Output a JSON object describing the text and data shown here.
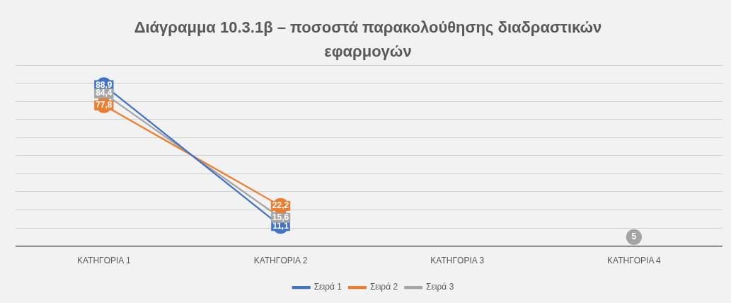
{
  "chart_data": {
    "type": "line",
    "title": "Διάγραμμα 10.3.1β – ποσοστά παρακολούθησης διαδραστικών εφαρμογών",
    "categories": [
      "ΚΑΤΗΓΟΡΙΑ 1",
      "ΚΑΤΗΓΟΡΙΑ 2",
      "ΚΑΤΗΓΟΡΙΑ 3",
      "ΚΑΤΗΓΟΡΙΑ 4"
    ],
    "series": [
      {
        "name": "Σειρά 1",
        "color": "#4472c4",
        "values": [
          88.9,
          11.1,
          null,
          null
        ],
        "value_labels": [
          "88,9",
          "11,1",
          null,
          null
        ]
      },
      {
        "name": "Σειρά 2",
        "color": "#ed7d31",
        "values": [
          77.8,
          22.2,
          null,
          null
        ],
        "value_labels": [
          "77,8",
          "22,2",
          null,
          null
        ]
      },
      {
        "name": "Σειρά 3",
        "color": "#a5a5a5",
        "values": [
          84.4,
          15.6,
          null,
          5
        ],
        "value_labels": [
          "84,4",
          "15,6",
          null,
          "5"
        ]
      }
    ],
    "ylim": [
      0,
      100
    ],
    "yticks": [
      {
        "value": 0,
        "label": null
      },
      {
        "value": 10,
        "label": null
      },
      {
        "value": 20,
        "label": null
      },
      {
        "value": 30,
        "label": null
      },
      {
        "value": 40,
        "label": null
      },
      {
        "value": 50,
        "label": null
      },
      {
        "value": 60,
        "label": null
      },
      {
        "value": 70,
        "label": null
      },
      {
        "value": 80,
        "label": null
      },
      {
        "value": 90,
        "label": null
      },
      {
        "value": 100,
        "label": null
      }
    ],
    "tick_labels": "x",
    "grid": "y",
    "legend": "bottom",
    "marker": "circle",
    "line_style": "solid"
  }
}
